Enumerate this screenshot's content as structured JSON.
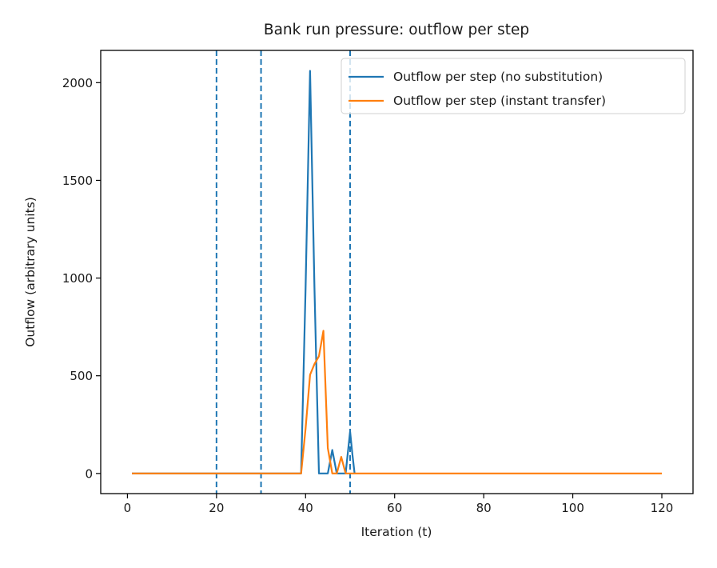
{
  "chart_data": {
    "type": "line",
    "title": "Bank run pressure: outflow per step",
    "xlabel": "Iteration (t)",
    "ylabel": "Outflow (arbitrary units)",
    "xlim": [
      -6,
      127
    ],
    "ylim": [
      -103,
      2165
    ],
    "xticks": [
      0,
      20,
      40,
      60,
      80,
      100,
      120
    ],
    "yticks": [
      0,
      500,
      1000,
      1500,
      2000
    ],
    "grid": false,
    "legend_position": "upper right",
    "vlines": [
      {
        "x": 20,
        "style": "dashed",
        "color": "#1f77b4"
      },
      {
        "x": 30,
        "style": "dashed",
        "color": "#1f77b4"
      },
      {
        "x": 50,
        "style": "dashed",
        "color": "#1f77b4"
      }
    ],
    "series": [
      {
        "name": "Outflow per step (no substitution)",
        "color": "#1f77b4",
        "points": [
          [
            1,
            0
          ],
          [
            39,
            0
          ],
          [
            40,
            950
          ],
          [
            41,
            2060
          ],
          [
            42,
            950
          ],
          [
            43,
            0
          ],
          [
            45,
            0
          ],
          [
            46,
            120
          ],
          [
            47,
            0
          ],
          [
            49,
            0
          ],
          [
            50,
            215
          ],
          [
            50.5,
            100
          ],
          [
            51,
            0
          ]
        ]
      },
      {
        "name": "Outflow per step (instant transfer)",
        "color": "#ff7f0e",
        "points": [
          [
            1,
            0
          ],
          [
            39,
            0
          ],
          [
            40,
            230
          ],
          [
            41,
            505
          ],
          [
            42,
            560
          ],
          [
            43,
            600
          ],
          [
            44,
            730
          ],
          [
            45,
            130
          ],
          [
            46,
            0
          ],
          [
            47,
            0
          ],
          [
            48,
            85
          ],
          [
            49,
            0
          ],
          [
            120,
            0
          ]
        ]
      }
    ]
  }
}
